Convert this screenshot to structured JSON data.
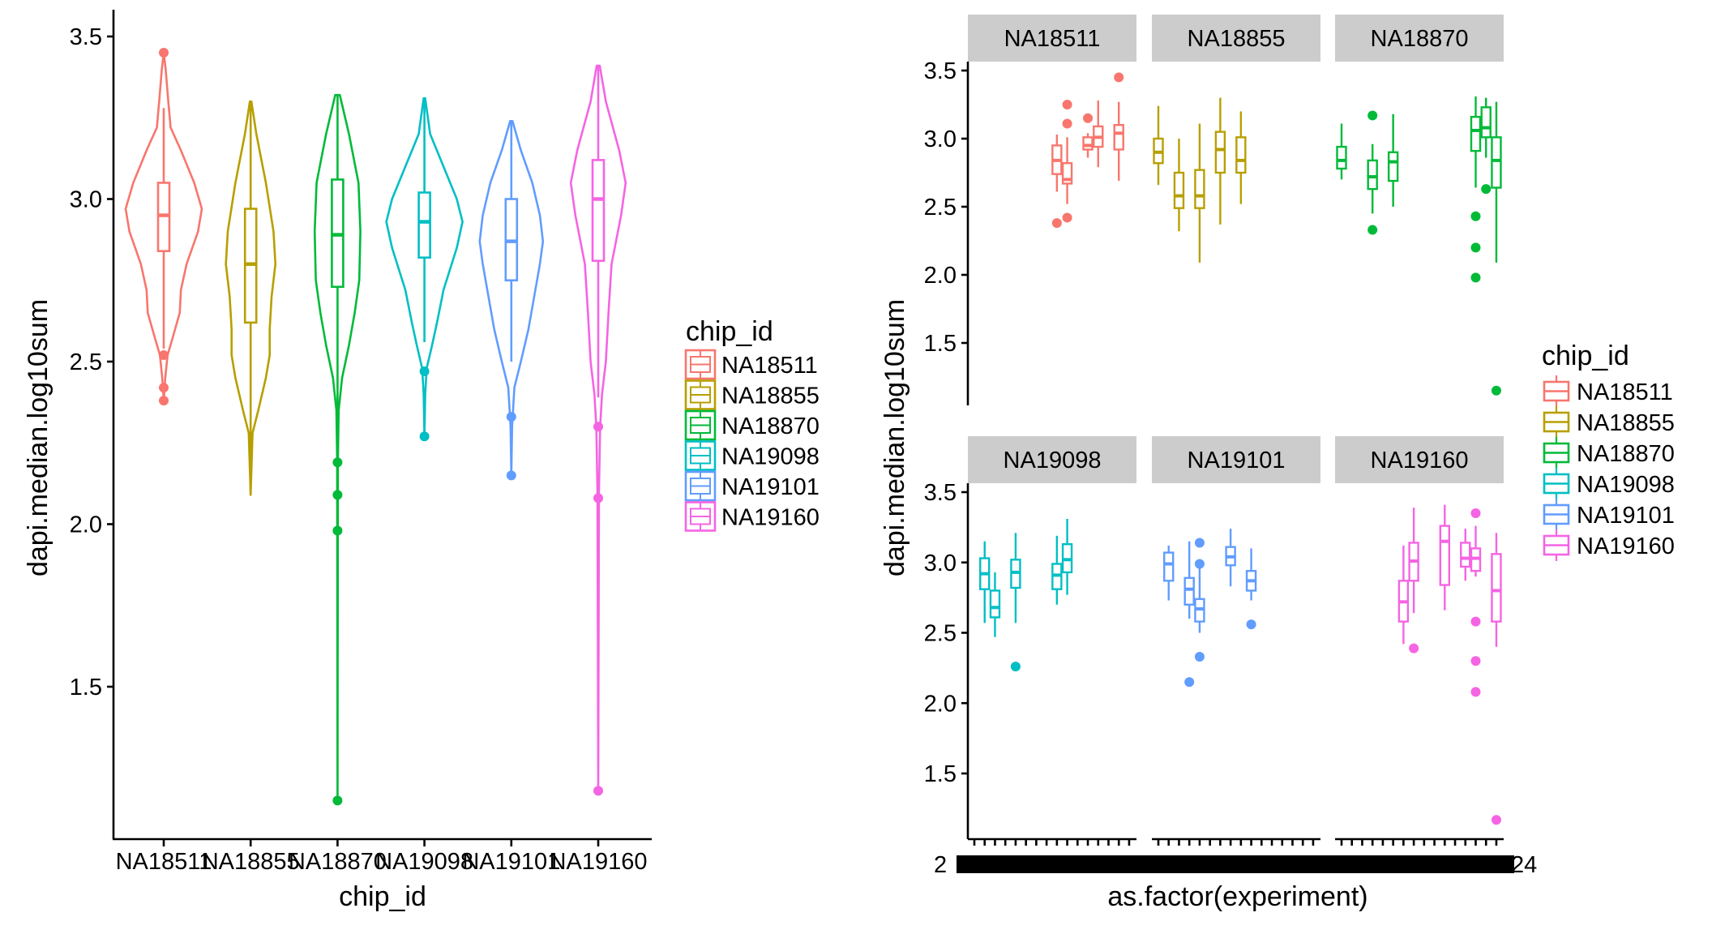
{
  "chart_data": [
    {
      "type": "violin+box",
      "panel": "left",
      "title": "",
      "xlabel": "chip_id",
      "ylabel": "dapi.median.log10sum",
      "ylim": [
        1.08,
        3.56
      ],
      "yticks": [
        "1.5",
        "2.0",
        "2.5",
        "3.0",
        "3.5"
      ],
      "ytick_values": [
        1.5,
        2.0,
        2.5,
        3.0,
        3.5
      ],
      "grid": false,
      "categories": [
        "NA18511",
        "NA18855",
        "NA18870",
        "NA19098",
        "NA19101",
        "NA19160"
      ],
      "series": [
        {
          "name": "NA18511",
          "box": {
            "lower_whisker": 2.54,
            "q1": 2.84,
            "median": 2.95,
            "q3": 3.05,
            "upper_whisker": 3.28
          },
          "outliers": [
            3.45,
            2.52,
            2.42,
            2.38
          ],
          "violin_density": [
            [
              3.45,
              0
            ],
            [
              3.4,
              0.05
            ],
            [
              3.3,
              0.12
            ],
            [
              3.22,
              0.18
            ],
            [
              3.15,
              0.45
            ],
            [
              3.05,
              0.8
            ],
            [
              2.97,
              1.0
            ],
            [
              2.9,
              0.9
            ],
            [
              2.8,
              0.6
            ],
            [
              2.72,
              0.45
            ],
            [
              2.65,
              0.42
            ],
            [
              2.58,
              0.25
            ],
            [
              2.52,
              0.1
            ],
            [
              2.45,
              0.04
            ],
            [
              2.38,
              0
            ]
          ]
        },
        {
          "name": "NA18855",
          "box": {
            "lower_whisker": 2.09,
            "q1": 2.62,
            "median": 2.8,
            "q3": 2.97,
            "upper_whisker": 3.3
          },
          "outliers": [],
          "violin_density": [
            [
              3.3,
              0.02
            ],
            [
              3.2,
              0.15
            ],
            [
              3.05,
              0.4
            ],
            [
              2.9,
              0.6
            ],
            [
              2.8,
              0.65
            ],
            [
              2.7,
              0.55
            ],
            [
              2.6,
              0.5
            ],
            [
              2.52,
              0.5
            ],
            [
              2.45,
              0.4
            ],
            [
              2.35,
              0.2
            ],
            [
              2.28,
              0.05
            ],
            [
              2.09,
              0
            ]
          ]
        },
        {
          "name": "NA18870",
          "box": {
            "lower_whisker": 2.32,
            "q1": 2.73,
            "median": 2.89,
            "q3": 3.06,
            "upper_whisker": 3.32
          },
          "outliers": [
            2.19,
            2.09,
            1.98,
            1.15
          ],
          "violin_density": [
            [
              3.32,
              0.06
            ],
            [
              3.2,
              0.3
            ],
            [
              3.05,
              0.55
            ],
            [
              2.9,
              0.6
            ],
            [
              2.75,
              0.57
            ],
            [
              2.65,
              0.45
            ],
            [
              2.55,
              0.3
            ],
            [
              2.45,
              0.12
            ],
            [
              2.35,
              0.03
            ],
            [
              2.2,
              0.01
            ],
            [
              1.15,
              0
            ]
          ]
        },
        {
          "name": "NA19098",
          "box": {
            "lower_whisker": 2.56,
            "q1": 2.82,
            "median": 2.93,
            "q3": 3.02,
            "upper_whisker": 3.31
          },
          "outliers": [
            2.47,
            2.27
          ],
          "violin_density": [
            [
              3.31,
              0.02
            ],
            [
              3.2,
              0.15
            ],
            [
              3.1,
              0.5
            ],
            [
              3.0,
              0.85
            ],
            [
              2.93,
              1.0
            ],
            [
              2.85,
              0.85
            ],
            [
              2.72,
              0.5
            ],
            [
              2.62,
              0.33
            ],
            [
              2.55,
              0.2
            ],
            [
              2.48,
              0.06
            ],
            [
              2.4,
              0.02
            ],
            [
              2.27,
              0
            ]
          ]
        },
        {
          "name": "NA19101",
          "box": {
            "lower_whisker": 2.5,
            "q1": 2.75,
            "median": 2.87,
            "q3": 3.0,
            "upper_whisker": 3.24
          },
          "outliers": [
            2.33,
            2.15
          ],
          "violin_density": [
            [
              3.24,
              0.03
            ],
            [
              3.15,
              0.25
            ],
            [
              3.05,
              0.55
            ],
            [
              2.95,
              0.75
            ],
            [
              2.87,
              0.83
            ],
            [
              2.8,
              0.75
            ],
            [
              2.7,
              0.6
            ],
            [
              2.6,
              0.45
            ],
            [
              2.5,
              0.25
            ],
            [
              2.42,
              0.08
            ],
            [
              2.3,
              0.02
            ],
            [
              2.15,
              0
            ]
          ]
        },
        {
          "name": "NA19160",
          "box": {
            "lower_whisker": 2.39,
            "q1": 2.81,
            "median": 3.0,
            "q3": 3.12,
            "upper_whisker": 3.41
          },
          "outliers": [
            2.3,
            2.08,
            1.18
          ],
          "violin_density": [
            [
              3.41,
              0.04
            ],
            [
              3.3,
              0.2
            ],
            [
              3.15,
              0.55
            ],
            [
              3.05,
              0.72
            ],
            [
              2.95,
              0.6
            ],
            [
              2.8,
              0.35
            ],
            [
              2.65,
              0.27
            ],
            [
              2.5,
              0.2
            ],
            [
              2.4,
              0.1
            ],
            [
              2.3,
              0.05
            ],
            [
              2.1,
              0.02
            ],
            [
              1.18,
              0
            ]
          ]
        }
      ],
      "legend": {
        "title": "chip_id",
        "position": "right",
        "entries": [
          "NA18511",
          "NA18855",
          "NA18870",
          "NA19098",
          "NA19101",
          "NA19160"
        ]
      }
    },
    {
      "type": "box",
      "panel": "right",
      "facet_by": "chip_id",
      "facet_layout": "2 rows x 3 columns",
      "xlabel": "as.factor(experiment)",
      "ylabel": "dapi.median.log10sum",
      "ylim": [
        1.08,
        3.56
      ],
      "yticks": [
        "1.5",
        "2.0",
        "2.5",
        "3.0",
        "3.5"
      ],
      "ytick_values": [
        1.5,
        2.0,
        2.5,
        3.0,
        3.5
      ],
      "x_levels_count": 16,
      "x_tick_labels_note": "16 experiment labels per facet, heavily overlapping and illegible",
      "x_tick_label_fragments": [
        "2",
        "24"
      ],
      "grid": false,
      "facets": [
        {
          "name": "NA18511",
          "boxes": [
            {
              "slot": 9,
              "lower_whisker": 2.61,
              "q1": 2.74,
              "median": 2.84,
              "q3": 2.95,
              "upper_whisker": 3.03,
              "outliers": [
                2.38
              ]
            },
            {
              "slot": 10,
              "lower_whisker": 2.52,
              "q1": 2.67,
              "median": 2.7,
              "q3": 2.82,
              "upper_whisker": 3.01,
              "outliers": [
                3.25,
                3.11,
                2.42
              ]
            },
            {
              "slot": 12,
              "lower_whisker": 2.86,
              "q1": 2.92,
              "median": 2.95,
              "q3": 3.01,
              "upper_whisker": 3.04,
              "outliers": [
                3.15
              ]
            },
            {
              "slot": 13,
              "lower_whisker": 2.79,
              "q1": 2.94,
              "median": 3.01,
              "q3": 3.09,
              "upper_whisker": 3.28,
              "outliers": []
            },
            {
              "slot": 15,
              "lower_whisker": 2.69,
              "q1": 2.92,
              "median": 3.04,
              "q3": 3.1,
              "upper_whisker": 3.27,
              "outliers": [
                3.45
              ]
            }
          ]
        },
        {
          "name": "NA18855",
          "boxes": [
            {
              "slot": 1,
              "lower_whisker": 2.66,
              "q1": 2.82,
              "median": 2.9,
              "q3": 3.0,
              "upper_whisker": 3.24,
              "outliers": []
            },
            {
              "slot": 3,
              "lower_whisker": 2.32,
              "q1": 2.49,
              "median": 2.58,
              "q3": 2.75,
              "upper_whisker": 3.0,
              "outliers": []
            },
            {
              "slot": 5,
              "lower_whisker": 2.09,
              "q1": 2.49,
              "median": 2.58,
              "q3": 2.77,
              "upper_whisker": 3.11,
              "outliers": []
            },
            {
              "slot": 7,
              "lower_whisker": 2.37,
              "q1": 2.75,
              "median": 2.92,
              "q3": 3.05,
              "upper_whisker": 3.3,
              "outliers": []
            },
            {
              "slot": 9,
              "lower_whisker": 2.52,
              "q1": 2.75,
              "median": 2.84,
              "q3": 3.01,
              "upper_whisker": 3.2,
              "outliers": []
            }
          ]
        },
        {
          "name": "NA18870",
          "boxes": [
            {
              "slot": 1,
              "lower_whisker": 2.7,
              "q1": 2.78,
              "median": 2.84,
              "q3": 2.94,
              "upper_whisker": 3.11,
              "outliers": []
            },
            {
              "slot": 4,
              "lower_whisker": 2.45,
              "q1": 2.63,
              "median": 2.72,
              "q3": 2.84,
              "upper_whisker": 2.96,
              "outliers": [
                3.17,
                2.33
              ]
            },
            {
              "slot": 6,
              "lower_whisker": 2.5,
              "q1": 2.69,
              "median": 2.83,
              "q3": 2.9,
              "upper_whisker": 3.18,
              "outliers": []
            },
            {
              "slot": 14,
              "lower_whisker": 2.64,
              "q1": 2.91,
              "median": 3.06,
              "q3": 3.16,
              "upper_whisker": 3.31,
              "outliers": [
                2.43,
                2.2,
                1.98
              ]
            },
            {
              "slot": 15,
              "lower_whisker": 2.86,
              "q1": 3.01,
              "median": 3.08,
              "q3": 3.23,
              "upper_whisker": 3.3,
              "outliers": [
                2.63
              ]
            },
            {
              "slot": 16,
              "lower_whisker": 2.09,
              "q1": 2.64,
              "median": 2.84,
              "q3": 3.01,
              "upper_whisker": 3.27,
              "outliers": [
                1.15
              ]
            }
          ]
        },
        {
          "name": "NA19098",
          "boxes": [
            {
              "slot": 2,
              "lower_whisker": 2.57,
              "q1": 2.81,
              "median": 2.92,
              "q3": 3.03,
              "upper_whisker": 3.15,
              "outliers": []
            },
            {
              "slot": 3,
              "lower_whisker": 2.47,
              "q1": 2.61,
              "median": 2.68,
              "q3": 2.8,
              "upper_whisker": 2.93,
              "outliers": []
            },
            {
              "slot": 5,
              "lower_whisker": 2.57,
              "q1": 2.82,
              "median": 2.93,
              "q3": 3.02,
              "upper_whisker": 3.21,
              "outliers": [
                2.26
              ]
            },
            {
              "slot": 9,
              "lower_whisker": 2.7,
              "q1": 2.81,
              "median": 2.91,
              "q3": 2.99,
              "upper_whisker": 3.19,
              "outliers": []
            },
            {
              "slot": 10,
              "lower_whisker": 2.77,
              "q1": 2.93,
              "median": 3.02,
              "q3": 3.13,
              "upper_whisker": 3.31,
              "outliers": []
            }
          ]
        },
        {
          "name": "NA19101",
          "boxes": [
            {
              "slot": 2,
              "lower_whisker": 2.73,
              "q1": 2.87,
              "median": 2.99,
              "q3": 3.07,
              "upper_whisker": 3.12,
              "outliers": []
            },
            {
              "slot": 4,
              "lower_whisker": 2.6,
              "q1": 2.7,
              "median": 2.81,
              "q3": 2.89,
              "upper_whisker": 3.15,
              "outliers": [
                2.15
              ]
            },
            {
              "slot": 5,
              "lower_whisker": 2.5,
              "q1": 2.58,
              "median": 2.67,
              "q3": 2.74,
              "upper_whisker": 2.96,
              "outliers": [
                3.14,
                2.99,
                2.33
              ]
            },
            {
              "slot": 8,
              "lower_whisker": 2.83,
              "q1": 2.98,
              "median": 3.04,
              "q3": 3.11,
              "upper_whisker": 3.24,
              "outliers": []
            },
            {
              "slot": 10,
              "lower_whisker": 2.73,
              "q1": 2.8,
              "median": 2.87,
              "q3": 2.94,
              "upper_whisker": 3.1,
              "outliers": [
                2.56
              ]
            }
          ]
        },
        {
          "name": "NA19160",
          "boxes": [
            {
              "slot": 7,
              "lower_whisker": 2.42,
              "q1": 2.58,
              "median": 2.72,
              "q3": 2.87,
              "upper_whisker": 3.12,
              "outliers": []
            },
            {
              "slot": 8,
              "lower_whisker": 2.64,
              "q1": 2.87,
              "median": 3.01,
              "q3": 3.14,
              "upper_whisker": 3.39,
              "outliers": [
                2.39
              ]
            },
            {
              "slot": 11,
              "lower_whisker": 2.66,
              "q1": 2.84,
              "median": 3.15,
              "q3": 3.26,
              "upper_whisker": 3.41,
              "outliers": []
            },
            {
              "slot": 13,
              "lower_whisker": 2.87,
              "q1": 2.97,
              "median": 3.03,
              "q3": 3.14,
              "upper_whisker": 3.24,
              "outliers": []
            },
            {
              "slot": 14,
              "lower_whisker": 2.9,
              "q1": 2.94,
              "median": 3.03,
              "q3": 3.1,
              "upper_whisker": 3.26,
              "outliers": [
                3.35,
                2.58,
                2.3,
                2.08
              ]
            },
            {
              "slot": 16,
              "lower_whisker": 2.4,
              "q1": 2.58,
              "median": 2.8,
              "q3": 3.06,
              "upper_whisker": 3.21,
              "outliers": [
                1.17
              ]
            }
          ]
        }
      ],
      "legend": {
        "title": "chip_id",
        "position": "right",
        "entries": [
          "NA18511",
          "NA18855",
          "NA18870",
          "NA19098",
          "NA19101",
          "NA19160"
        ]
      }
    }
  ],
  "colors": {
    "NA18511": "#F8766D",
    "NA18855": "#B79F00",
    "NA18870": "#00BA38",
    "NA19098": "#00BFC4",
    "NA19101": "#619CFF",
    "NA19160": "#F564E3",
    "strip_background": "#CCCCCC",
    "axis": "#000000"
  }
}
